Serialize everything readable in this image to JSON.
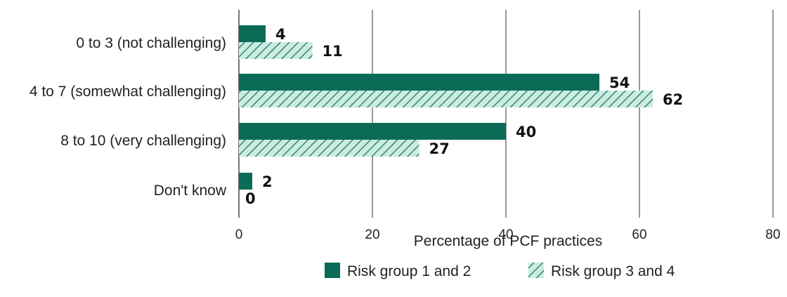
{
  "chart_data": {
    "type": "bar",
    "orientation": "horizontal",
    "categories": [
      "0 to 3 (not challenging)",
      "4 to 7 (somewhat challenging)",
      "8 to 10 (very challenging)",
      "Don't know"
    ],
    "series": [
      {
        "name": "Risk group 1 and 2",
        "values": [
          4,
          54,
          40,
          2
        ],
        "pattern": "solid"
      },
      {
        "name": "Risk group 3 and 4",
        "values": [
          11,
          62,
          27,
          0
        ],
        "pattern": "hatched"
      }
    ],
    "xlabel": "Percentage of PCF practices",
    "xlim": [
      0,
      80
    ],
    "xticks": [
      0,
      20,
      40,
      60,
      80
    ],
    "grid": "vertical",
    "legend": "bottom-center"
  },
  "colors": {
    "series1": "#0b6b57",
    "series2_fill": "#cdebe1",
    "series2_hatch": "#2a8c73",
    "grid": "#555555",
    "text": "#222222"
  }
}
